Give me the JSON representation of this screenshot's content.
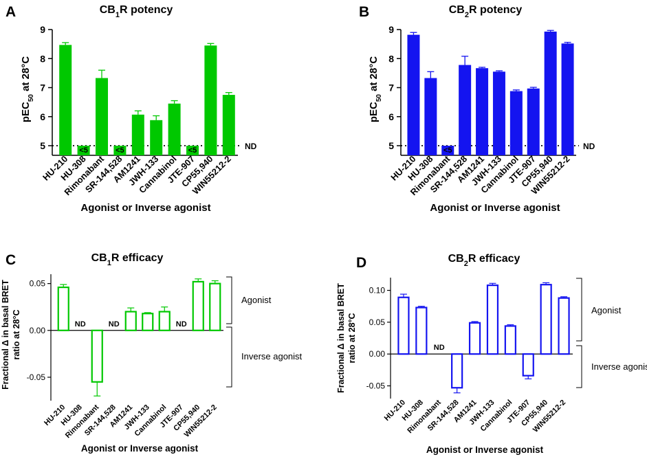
{
  "chart_data": [
    {
      "panel": "A",
      "title_prefix": "CB",
      "title_sub": "1",
      "title_suffix": "R potency",
      "type": "bar",
      "color": "#00c800",
      "bar_style": "filled",
      "categories": [
        "HU-210",
        "HU-308",
        "Rimonabant",
        "SR-144,528",
        "AM1241",
        "JWH-133",
        "Cannabinol",
        "JTE-907",
        "CP55,940",
        "WIN55212-2"
      ],
      "values": [
        8.47,
        5.0,
        7.33,
        5.0,
        6.07,
        5.88,
        6.45,
        5.0,
        8.45,
        6.75
      ],
      "errors": [
        0.08,
        0,
        0.27,
        0,
        0.13,
        0.15,
        0.1,
        0,
        0.07,
        0.08
      ],
      "below_threshold": [
        false,
        true,
        false,
        true,
        false,
        false,
        false,
        true,
        false,
        false
      ],
      "below_label": "<5",
      "ylabel_pre": "pEC",
      "ylabel_sub": "50",
      "ylabel_post": " at 28°C",
      "xlabel": "Agonist or Inverse agonist",
      "ylim": [
        5,
        9
      ],
      "yticks": [
        "5",
        "6",
        "7",
        "8",
        "9"
      ],
      "ref_line": 5,
      "ref_label": "ND"
    },
    {
      "panel": "B",
      "title_prefix": "CB",
      "title_sub": "2",
      "title_suffix": "R potency",
      "type": "bar",
      "color": "#1414f0",
      "bar_style": "filled",
      "categories": [
        "HU-210",
        "HU-308",
        "Rimonabant",
        "SR-144,528",
        "AM1241",
        "JWH-133",
        "Cannabinol",
        "JTE-907",
        "CP55,940",
        "WIN55212-2"
      ],
      "values": [
        8.82,
        7.33,
        5.0,
        7.78,
        7.67,
        7.55,
        6.88,
        6.97,
        8.93,
        8.52
      ],
      "errors": [
        0.08,
        0.22,
        0,
        0.3,
        0.03,
        0.03,
        0.04,
        0.04,
        0.04,
        0.04
      ],
      "below_threshold": [
        false,
        false,
        true,
        false,
        false,
        false,
        false,
        false,
        false,
        false
      ],
      "below_label": "<5",
      "ylabel_pre": "pEC",
      "ylabel_sub": "50",
      "ylabel_post": " at 28°C",
      "xlabel": "Agonist or Inverse agonist",
      "ylim": [
        5,
        9
      ],
      "yticks": [
        "5",
        "6",
        "7",
        "8",
        "9"
      ],
      "ref_line": 5,
      "ref_label": "ND"
    },
    {
      "panel": "C",
      "title_prefix": "CB",
      "title_sub": "1",
      "title_suffix": "R efficacy",
      "type": "bar",
      "color": "#00c800",
      "bar_style": "outline",
      "categories": [
        "HU-210",
        "HU-308",
        "Rimonabant",
        "SR-144,528",
        "AM1241",
        "JWH-133",
        "Cannabinol",
        "JTE-907",
        "CP55,940",
        "WIN55212-2"
      ],
      "values": [
        0.046,
        null,
        -0.055,
        null,
        0.02,
        0.018,
        0.02,
        null,
        0.052,
        0.05
      ],
      "errors": [
        0.003,
        0,
        0.015,
        0,
        0.004,
        0.001,
        0.005,
        0,
        0.003,
        0.003
      ],
      "nd_label": "ND",
      "ylabel_line1": "Fractional Δ in basal BRET",
      "ylabel_line2": "ratio at 28°C",
      "xlabel": "Agonist or Inverse agonist",
      "ylim": [
        -0.075,
        0.06
      ],
      "yticks": [
        {
          "v": 0.05,
          "label": "0.05"
        },
        {
          "v": 0,
          "label": "0.00"
        },
        {
          "v": -0.05,
          "label": "-0.05"
        }
      ],
      "bracket_labels": [
        "Agonist",
        "Inverse agonist"
      ]
    },
    {
      "panel": "D",
      "title_prefix": "CB",
      "title_sub": "2",
      "title_suffix": "R efficacy",
      "type": "bar",
      "color": "#1414f0",
      "bar_style": "outline",
      "categories": [
        "HU-210",
        "HU-308",
        "Rimonabant",
        "SR-144,528",
        "AM1241",
        "JWH-133",
        "Cannabinol",
        "JTE-907",
        "CP55,940",
        "WIN55212-2"
      ],
      "values": [
        0.089,
        0.073,
        null,
        -0.053,
        0.049,
        0.108,
        0.044,
        -0.034,
        0.109,
        0.088
      ],
      "errors": [
        0.005,
        0.002,
        0,
        0.008,
        0.002,
        0.003,
        0.002,
        0.005,
        0.003,
        0.002
      ],
      "nd_label": "ND",
      "ylabel_line1": "Fractional Δ in basal BRET",
      "ylabel_line2": "ratio at 28°C",
      "xlabel": "Agonist or Inverse agonist",
      "ylim": [
        -0.07,
        0.12
      ],
      "yticks": [
        {
          "v": 0.1,
          "label": "0.10"
        },
        {
          "v": 0.05,
          "label": "0.05"
        },
        {
          "v": 0,
          "label": "0.00"
        },
        {
          "v": -0.05,
          "label": "-0.05"
        }
      ],
      "bracket_labels": [
        "Agonist",
        "Inverse agonist"
      ]
    }
  ]
}
